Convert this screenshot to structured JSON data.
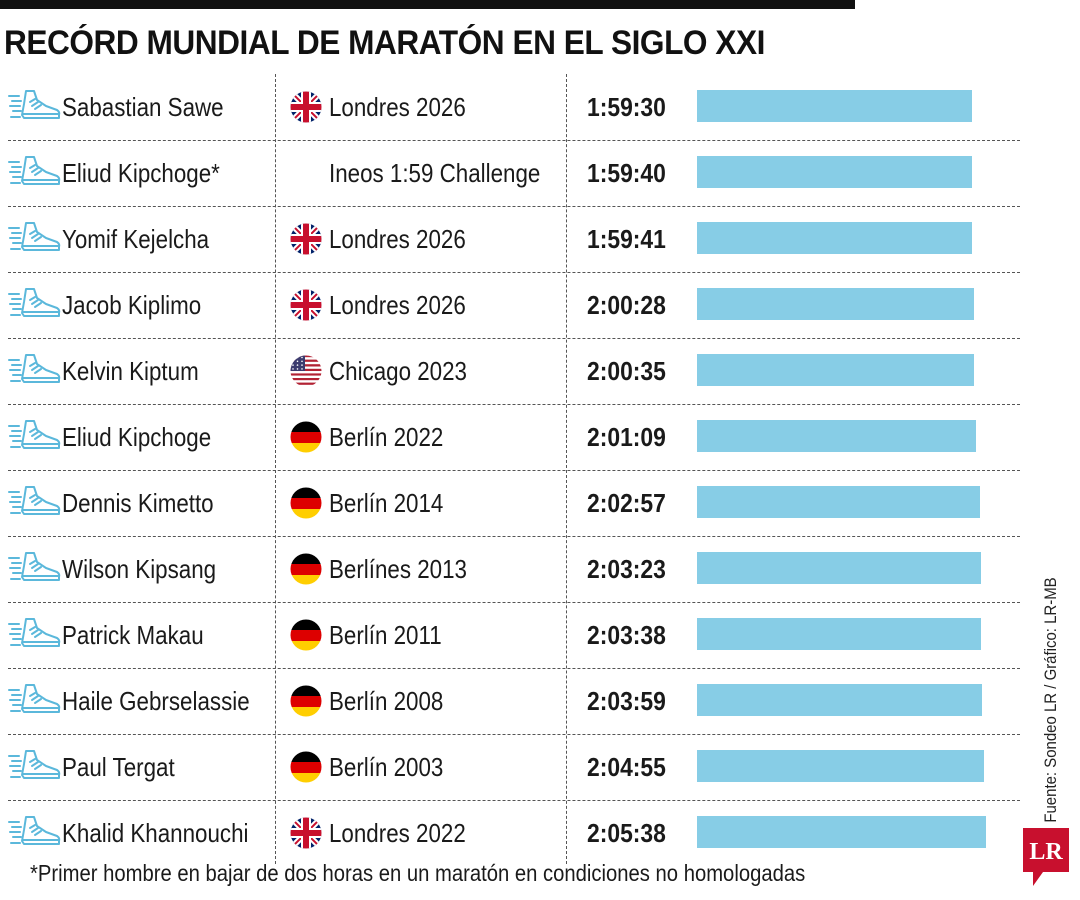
{
  "title": "RECÓRD MUNDIAL DE MARATÓN EN EL SIGLO XXI",
  "footnote": "*Primer hombre en bajar de dos horas en un maratón en condiciones no homologadas",
  "source": "Fuente: Sondeo LR / Gráfico: LR-MB",
  "logo_text": "LR",
  "colors": {
    "bar": "#87CDE6",
    "shoe": "#5BB8DB",
    "logo": "#C8102E"
  },
  "chart_data": {
    "type": "bar",
    "orientation": "horizontal",
    "unit": "h:mm:ss",
    "bars_scale_note": "bar length shown proportional to finishing time",
    "rows": [
      {
        "name": "Sabastian Sawe",
        "flag": "uk",
        "place": "Londres 2026",
        "time": "1:59:30",
        "seconds": 7170
      },
      {
        "name": "Eliud Kipchoge*",
        "flag": "",
        "place": "Ineos 1:59 Challenge",
        "time": "1:59:40",
        "seconds": 7180
      },
      {
        "name": "Yomif Kejelcha",
        "flag": "uk",
        "place": "Londres 2026",
        "time": "1:59:41",
        "seconds": 7181
      },
      {
        "name": "Jacob Kiplimo",
        "flag": "uk",
        "place": "Londres 2026",
        "time": "2:00:28",
        "seconds": 7228
      },
      {
        "name": "Kelvin Kiptum",
        "flag": "us",
        "place": "Chicago 2023",
        "time": "2:00:35",
        "seconds": 7235
      },
      {
        "name": "Eliud Kipchoge",
        "flag": "de",
        "place": "Berlín 2022",
        "time": "2:01:09",
        "seconds": 7269
      },
      {
        "name": "Dennis Kimetto",
        "flag": "de",
        "place": "Berlín 2014",
        "time": "2:02:57",
        "seconds": 7377
      },
      {
        "name": "Wilson Kipsang",
        "flag": "de",
        "place": "Berlínes 2013",
        "time": "2:03:23",
        "seconds": 7403
      },
      {
        "name": "Patrick Makau",
        "flag": "de",
        "place": "Berlín 2011",
        "time": "2:03:38",
        "seconds": 7418
      },
      {
        "name": "Haile Gebrselassie",
        "flag": "de",
        "place": "Berlín 2008",
        "time": "2:03:59",
        "seconds": 7439
      },
      {
        "name": "Paul Tergat",
        "flag": "de",
        "place": "Berlín 2003",
        "time": "2:04:55",
        "seconds": 7495
      },
      {
        "name": "Khalid Khannouchi",
        "flag": "uk",
        "place": "Londres 2022",
        "time": "2:05:38",
        "seconds": 7538
      }
    ]
  }
}
